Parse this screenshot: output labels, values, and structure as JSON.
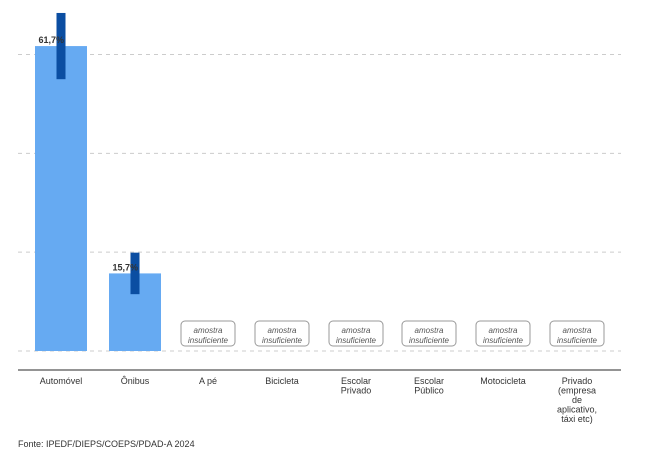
{
  "chart_data": {
    "type": "bar",
    "categories": [
      [
        "Automóvel"
      ],
      [
        "Ônibus"
      ],
      [
        "A pé"
      ],
      [
        "Bicicleta"
      ],
      [
        "Escolar",
        "Privado"
      ],
      [
        "Escolar",
        "Público"
      ],
      [
        "Motocicleta"
      ],
      [
        "Privado",
        "(empresa",
        "de",
        "aplicativo,",
        "táxi etc)"
      ]
    ],
    "values": [
      61.7,
      15.7,
      null,
      null,
      null,
      null,
      null,
      null
    ],
    "data_labels": [
      "61,7%",
      "15,7%",
      "",
      "",
      "",
      "",
      "",
      ""
    ],
    "error_bars": [
      [
        55.0,
        68.4
      ],
      [
        11.5,
        19.9
      ],
      null,
      null,
      null,
      null,
      null,
      null
    ],
    "insufficient_label": [
      "amostra",
      "insuficiente"
    ],
    "ylim": [
      0,
      69
    ],
    "grid_values": [
      0,
      20,
      40,
      60
    ],
    "grid": true,
    "legend": "none",
    "colors": {
      "bar": "#66aaf2",
      "error_bar": "#0b4ea2",
      "grid": "#cccccc",
      "axis": "#555555",
      "label": "#333333"
    }
  },
  "source_text": "Fonte: IPEDF/DIEPS/COEPS/PDAD-A 2024"
}
